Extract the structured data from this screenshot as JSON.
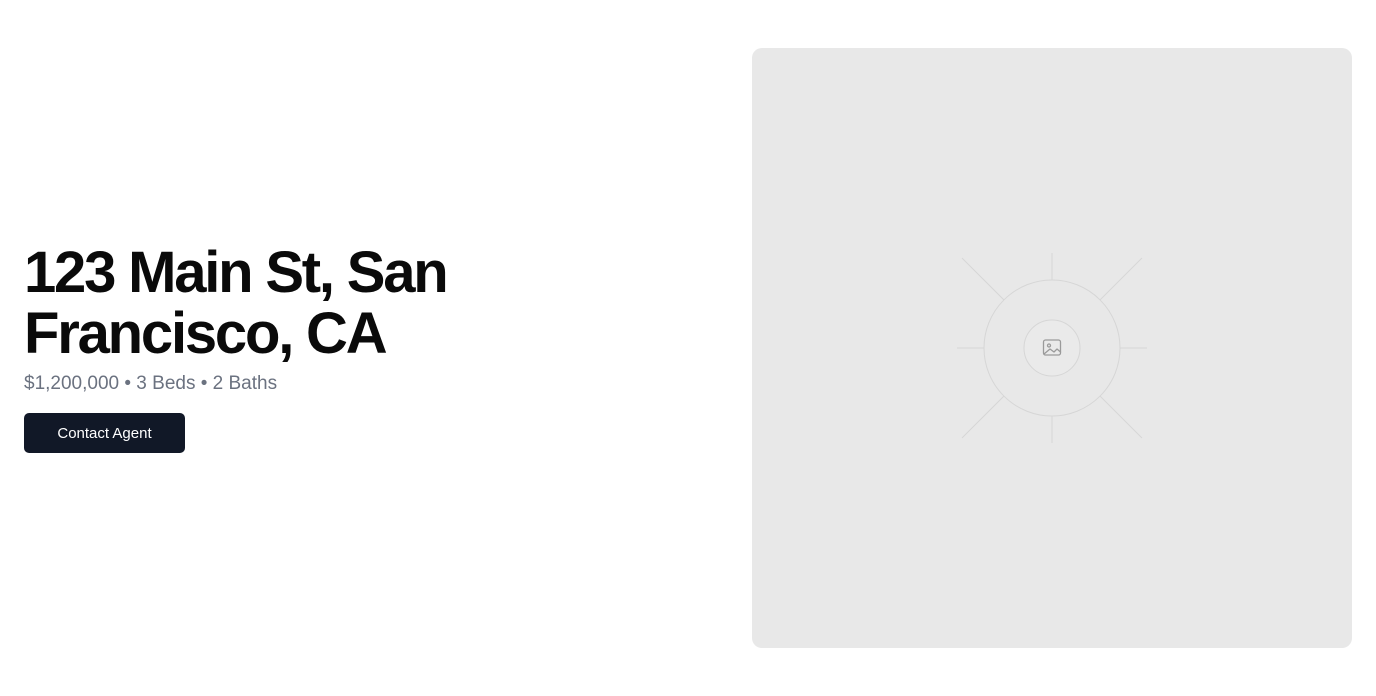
{
  "listing": {
    "address": "123 Main St, San Francisco, CA",
    "details": "$1,200,000 • 3 Beds • 2 Baths",
    "cta_label": "Contact Agent"
  },
  "media": {
    "icon": "image-icon"
  },
  "colors": {
    "page_background": "#ffffff",
    "title": "#0a0a0a",
    "meta_text": "#6b7280",
    "button_background": "#111827",
    "button_text": "#ffffff",
    "placeholder_background": "#e8e8e8"
  }
}
